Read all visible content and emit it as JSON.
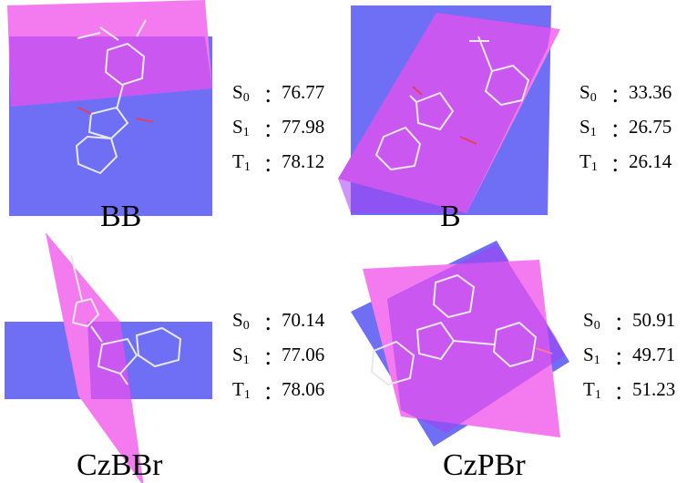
{
  "colors": {
    "plane_blue": "#6f6ff5",
    "plane_magenta": "#f47af0",
    "overlap": "#8a2ee8",
    "bond": "#e6e6e6"
  },
  "panels": [
    {
      "name": "BB",
      "separator": "：",
      "energies": [
        {
          "state": "S",
          "sub": "0",
          "value": "76.77"
        },
        {
          "state": "S",
          "sub": "1",
          "value": "77.98"
        },
        {
          "state": "T",
          "sub": "1",
          "value": "78.12"
        }
      ]
    },
    {
      "name": "B",
      "separator": "：",
      "energies": [
        {
          "state": "S",
          "sub": "0",
          "value": "33.36"
        },
        {
          "state": "S",
          "sub": "1",
          "value": "26.75"
        },
        {
          "state": "T",
          "sub": "1",
          "value": "26.14"
        }
      ]
    },
    {
      "name": "CzBBr",
      "separator": "：",
      "energies": [
        {
          "state": "S",
          "sub": "0",
          "value": "70.14"
        },
        {
          "state": "S",
          "sub": "1",
          "value": "77.06"
        },
        {
          "state": "T",
          "sub": "1",
          "value": "78.06"
        }
      ]
    },
    {
      "name": "CzPBr",
      "separator": "：",
      "energies": [
        {
          "state": "S",
          "sub": "0",
          "value": "50.91"
        },
        {
          "state": "S",
          "sub": "1",
          "value": "49.71"
        },
        {
          "state": "T",
          "sub": "1",
          "value": "51.23"
        }
      ]
    }
  ]
}
